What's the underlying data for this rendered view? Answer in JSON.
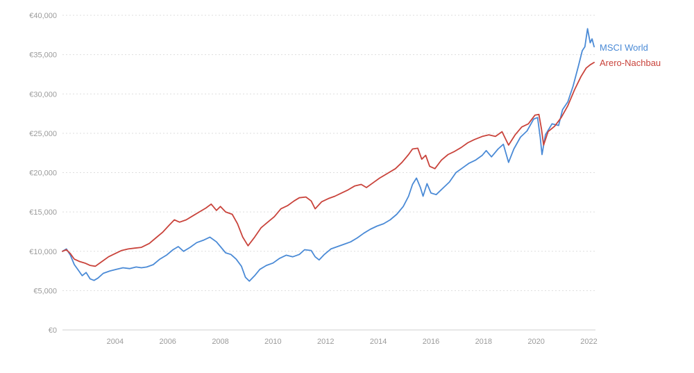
{
  "chart_data": {
    "type": "line",
    "title": "",
    "xlabel": "",
    "ylabel": "",
    "xlim": [
      2002.0,
      2022.25
    ],
    "ylim": [
      0,
      40000
    ],
    "grid": "horizontal-dashed",
    "legend": "right, at series ends",
    "y_ticks": [
      {
        "value": 0,
        "label": "€0"
      },
      {
        "value": 5000,
        "label": "€5,000"
      },
      {
        "value": 10000,
        "label": "€10,000"
      },
      {
        "value": 15000,
        "label": "€15,000"
      },
      {
        "value": 20000,
        "label": "€20,000"
      },
      {
        "value": 25000,
        "label": "€25,000"
      },
      {
        "value": 30000,
        "label": "€30,000"
      },
      {
        "value": 35000,
        "label": "€35,000"
      },
      {
        "value": 40000,
        "label": "€40,000"
      }
    ],
    "x_ticks": [
      {
        "value": 2004,
        "label": "2004"
      },
      {
        "value": 2006,
        "label": "2006"
      },
      {
        "value": 2008,
        "label": "2008"
      },
      {
        "value": 2010,
        "label": "2010"
      },
      {
        "value": 2012,
        "label": "2012"
      },
      {
        "value": 2014,
        "label": "2014"
      },
      {
        "value": 2016,
        "label": "2016"
      },
      {
        "value": 2018,
        "label": "2018"
      },
      {
        "value": 2020,
        "label": "2020"
      },
      {
        "value": 2022,
        "label": "2022"
      }
    ],
    "series": [
      {
        "name": "MSCI World",
        "color": "#4a8ad6",
        "points": [
          [
            2002.0,
            10000
          ],
          [
            2002.15,
            10300
          ],
          [
            2002.3,
            9500
          ],
          [
            2002.45,
            8300
          ],
          [
            2002.6,
            7600
          ],
          [
            2002.75,
            6900
          ],
          [
            2002.9,
            7300
          ],
          [
            2003.05,
            6500
          ],
          [
            2003.2,
            6300
          ],
          [
            2003.35,
            6600
          ],
          [
            2003.55,
            7200
          ],
          [
            2003.8,
            7500
          ],
          [
            2004.05,
            7700
          ],
          [
            2004.3,
            7900
          ],
          [
            2004.55,
            7800
          ],
          [
            2004.8,
            8000
          ],
          [
            2005.0,
            7900
          ],
          [
            2005.2,
            8000
          ],
          [
            2005.45,
            8300
          ],
          [
            2005.7,
            9000
          ],
          [
            2005.95,
            9500
          ],
          [
            2006.2,
            10200
          ],
          [
            2006.4,
            10600
          ],
          [
            2006.6,
            10000
          ],
          [
            2006.85,
            10500
          ],
          [
            2007.1,
            11100
          ],
          [
            2007.35,
            11400
          ],
          [
            2007.6,
            11800
          ],
          [
            2007.85,
            11200
          ],
          [
            2008.0,
            10600
          ],
          [
            2008.2,
            9800
          ],
          [
            2008.4,
            9600
          ],
          [
            2008.6,
            9000
          ],
          [
            2008.8,
            8100
          ],
          [
            2008.95,
            6700
          ],
          [
            2009.1,
            6200
          ],
          [
            2009.3,
            6900
          ],
          [
            2009.5,
            7700
          ],
          [
            2009.75,
            8200
          ],
          [
            2010.0,
            8500
          ],
          [
            2010.25,
            9100
          ],
          [
            2010.5,
            9500
          ],
          [
            2010.75,
            9300
          ],
          [
            2011.0,
            9600
          ],
          [
            2011.2,
            10200
          ],
          [
            2011.45,
            10100
          ],
          [
            2011.6,
            9300
          ],
          [
            2011.75,
            8900
          ],
          [
            2011.95,
            9600
          ],
          [
            2012.2,
            10300
          ],
          [
            2012.45,
            10600
          ],
          [
            2012.7,
            10900
          ],
          [
            2012.95,
            11200
          ],
          [
            2013.2,
            11700
          ],
          [
            2013.45,
            12300
          ],
          [
            2013.7,
            12800
          ],
          [
            2013.95,
            13200
          ],
          [
            2014.2,
            13500
          ],
          [
            2014.45,
            14000
          ],
          [
            2014.7,
            14700
          ],
          [
            2014.95,
            15700
          ],
          [
            2015.15,
            17000
          ],
          [
            2015.3,
            18500
          ],
          [
            2015.45,
            19300
          ],
          [
            2015.6,
            18100
          ],
          [
            2015.7,
            17000
          ],
          [
            2015.85,
            18600
          ],
          [
            2016.0,
            17400
          ],
          [
            2016.2,
            17200
          ],
          [
            2016.45,
            18000
          ],
          [
            2016.7,
            18800
          ],
          [
            2016.95,
            20000
          ],
          [
            2017.2,
            20600
          ],
          [
            2017.45,
            21200
          ],
          [
            2017.7,
            21600
          ],
          [
            2017.95,
            22200
          ],
          [
            2018.1,
            22800
          ],
          [
            2018.3,
            22000
          ],
          [
            2018.55,
            23000
          ],
          [
            2018.75,
            23600
          ],
          [
            2018.95,
            21300
          ],
          [
            2019.15,
            23000
          ],
          [
            2019.4,
            24500
          ],
          [
            2019.65,
            25300
          ],
          [
            2019.9,
            26800
          ],
          [
            2020.05,
            27000
          ],
          [
            2020.15,
            24500
          ],
          [
            2020.22,
            22300
          ],
          [
            2020.35,
            24800
          ],
          [
            2020.6,
            26200
          ],
          [
            2020.85,
            26000
          ],
          [
            2021.0,
            28000
          ],
          [
            2021.2,
            29000
          ],
          [
            2021.4,
            31000
          ],
          [
            2021.6,
            33500
          ],
          [
            2021.75,
            35500
          ],
          [
            2021.85,
            36000
          ],
          [
            2021.95,
            38300
          ],
          [
            2022.05,
            36500
          ],
          [
            2022.12,
            37000
          ],
          [
            2022.2,
            36000
          ]
        ]
      },
      {
        "name": "Arero-Nachbau",
        "color": "#c9433b",
        "points": [
          [
            2002.0,
            10000
          ],
          [
            2002.15,
            10200
          ],
          [
            2002.3,
            9700
          ],
          [
            2002.45,
            9000
          ],
          [
            2002.65,
            8700
          ],
          [
            2002.85,
            8500
          ],
          [
            2003.05,
            8200
          ],
          [
            2003.25,
            8100
          ],
          [
            2003.5,
            8700
          ],
          [
            2003.75,
            9300
          ],
          [
            2004.0,
            9700
          ],
          [
            2004.25,
            10100
          ],
          [
            2004.5,
            10300
          ],
          [
            2004.75,
            10400
          ],
          [
            2005.0,
            10500
          ],
          [
            2005.3,
            11000
          ],
          [
            2005.55,
            11700
          ],
          [
            2005.8,
            12400
          ],
          [
            2006.05,
            13300
          ],
          [
            2006.25,
            14000
          ],
          [
            2006.45,
            13700
          ],
          [
            2006.7,
            14000
          ],
          [
            2006.95,
            14500
          ],
          [
            2007.2,
            15000
          ],
          [
            2007.45,
            15500
          ],
          [
            2007.65,
            16000
          ],
          [
            2007.85,
            15200
          ],
          [
            2008.0,
            15700
          ],
          [
            2008.2,
            15000
          ],
          [
            2008.45,
            14700
          ],
          [
            2008.65,
            13500
          ],
          [
            2008.85,
            11800
          ],
          [
            2009.05,
            10700
          ],
          [
            2009.3,
            11800
          ],
          [
            2009.55,
            13000
          ],
          [
            2009.8,
            13700
          ],
          [
            2010.05,
            14400
          ],
          [
            2010.3,
            15400
          ],
          [
            2010.55,
            15800
          ],
          [
            2010.8,
            16400
          ],
          [
            2011.0,
            16800
          ],
          [
            2011.25,
            16900
          ],
          [
            2011.45,
            16400
          ],
          [
            2011.6,
            15400
          ],
          [
            2011.85,
            16300
          ],
          [
            2012.1,
            16700
          ],
          [
            2012.35,
            17000
          ],
          [
            2012.6,
            17400
          ],
          [
            2012.85,
            17800
          ],
          [
            2013.1,
            18300
          ],
          [
            2013.35,
            18500
          ],
          [
            2013.55,
            18100
          ],
          [
            2013.8,
            18700
          ],
          [
            2014.05,
            19300
          ],
          [
            2014.35,
            19900
          ],
          [
            2014.65,
            20500
          ],
          [
            2014.9,
            21300
          ],
          [
            2015.15,
            22300
          ],
          [
            2015.3,
            23000
          ],
          [
            2015.5,
            23100
          ],
          [
            2015.65,
            21700
          ],
          [
            2015.8,
            22200
          ],
          [
            2015.95,
            20800
          ],
          [
            2016.15,
            20500
          ],
          [
            2016.4,
            21600
          ],
          [
            2016.65,
            22300
          ],
          [
            2016.9,
            22700
          ],
          [
            2017.15,
            23200
          ],
          [
            2017.4,
            23800
          ],
          [
            2017.65,
            24200
          ],
          [
            2017.95,
            24600
          ],
          [
            2018.2,
            24800
          ],
          [
            2018.45,
            24600
          ],
          [
            2018.7,
            25200
          ],
          [
            2018.95,
            23500
          ],
          [
            2019.2,
            24800
          ],
          [
            2019.45,
            25800
          ],
          [
            2019.7,
            26200
          ],
          [
            2019.95,
            27300
          ],
          [
            2020.1,
            27400
          ],
          [
            2020.2,
            25500
          ],
          [
            2020.28,
            23500
          ],
          [
            2020.45,
            25200
          ],
          [
            2020.7,
            25900
          ],
          [
            2020.95,
            27000
          ],
          [
            2021.2,
            28500
          ],
          [
            2021.45,
            30500
          ],
          [
            2021.7,
            32200
          ],
          [
            2021.9,
            33300
          ],
          [
            2022.05,
            33700
          ],
          [
            2022.2,
            34000
          ]
        ]
      }
    ]
  }
}
